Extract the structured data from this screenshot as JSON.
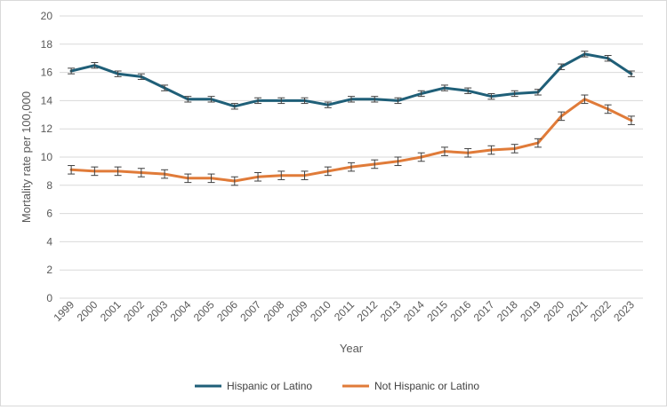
{
  "chart_data": {
    "type": "line",
    "title": "",
    "xlabel": "Year",
    "ylabel": "Mortality rate per 100,000",
    "ylim": [
      0,
      20
    ],
    "ytick_step": 2,
    "yticks": [
      "0",
      "2",
      "4",
      "6",
      "8",
      "10",
      "12",
      "14",
      "16",
      "18",
      "20"
    ],
    "grid": true,
    "legend_position": "bottom",
    "categories": [
      "1999",
      "2000",
      "2001",
      "2002",
      "2003",
      "2004",
      "2005",
      "2006",
      "2007",
      "2008",
      "2009",
      "2010",
      "2011",
      "2012",
      "2013",
      "2014",
      "2015",
      "2016",
      "2017",
      "2018",
      "2019",
      "2020",
      "2021",
      "2022",
      "2023"
    ],
    "series": [
      {
        "name": "Hispanic or Latino",
        "color": "#1f5f78",
        "values": [
          16.1,
          16.5,
          15.9,
          15.7,
          14.9,
          14.1,
          14.1,
          13.6,
          14.0,
          14.0,
          14.0,
          13.7,
          14.1,
          14.1,
          14.0,
          14.5,
          14.9,
          14.7,
          14.3,
          14.5,
          14.6,
          16.4,
          17.3,
          17.0,
          15.9
        ],
        "errors": [
          0.2,
          0.2,
          0.2,
          0.2,
          0.2,
          0.2,
          0.2,
          0.2,
          0.2,
          0.2,
          0.2,
          0.2,
          0.2,
          0.2,
          0.2,
          0.2,
          0.2,
          0.2,
          0.2,
          0.2,
          0.2,
          0.2,
          0.2,
          0.2,
          0.2
        ]
      },
      {
        "name": "Not Hispanic or Latino",
        "color": "#e07b39",
        "values": [
          9.1,
          9.0,
          9.0,
          8.9,
          8.8,
          8.5,
          8.5,
          8.3,
          8.6,
          8.7,
          8.7,
          9.0,
          9.3,
          9.5,
          9.7,
          10.0,
          10.4,
          10.3,
          10.5,
          10.6,
          11.0,
          12.9,
          14.1,
          13.4,
          12.6
        ],
        "errors": [
          0.3,
          0.3,
          0.3,
          0.3,
          0.3,
          0.3,
          0.3,
          0.3,
          0.3,
          0.3,
          0.3,
          0.3,
          0.3,
          0.3,
          0.3,
          0.3,
          0.3,
          0.3,
          0.3,
          0.3,
          0.3,
          0.3,
          0.3,
          0.3,
          0.3
        ]
      }
    ]
  }
}
